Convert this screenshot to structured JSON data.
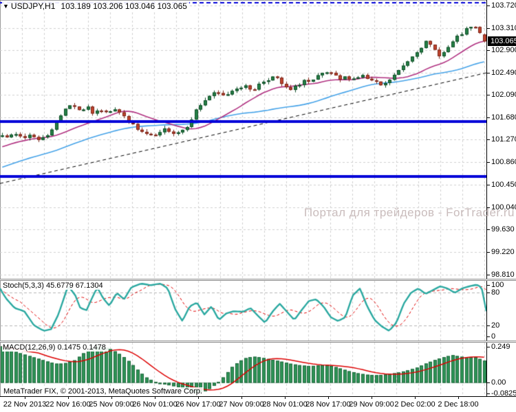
{
  "header": {
    "symbol": "USDJPY,H1",
    "ohlc_text": "103.189 103.206 103.046 103.065",
    "current_price": "103.065"
  },
  "watermark": {
    "text": "Портал для трейдеров - ForTrader.ru",
    "color": "#C9BCBC"
  },
  "footer": {
    "copyright": "MetaTrader FIX, © 2001-2013, MetaQuotes Software Corp."
  },
  "time_axis": {
    "labels": [
      "22 Nov 2013",
      "22 Nov 16:00",
      "25 Nov 09:00",
      "26 Nov 01:00",
      "26 Nov 17:00",
      "27 Nov 09:00",
      "28 Nov 01:00",
      "28 Nov 17:00",
      "29 Nov 09:00",
      "2 Dec 02:00",
      "2 Dec 18:00"
    ],
    "centers": [
      36,
      99,
      162,
      225,
      288,
      351,
      414,
      477,
      540,
      603,
      666
    ]
  },
  "colors": {
    "grid": "#CFCFCF",
    "bull_fill": "#258047",
    "bull_border": "#0E4D26",
    "bear_fill": "#C0442E",
    "bear_border": "#7A2418",
    "ma_fast": "#B03080",
    "ma_slow": "#44A2E8",
    "hline": "#0000D8",
    "trendline": "#000000",
    "stoch_main": "#2AA8A0",
    "stoch_signal": "#E00000",
    "macd_bar": "#2E9457",
    "macd_bar_border": "#1A6438",
    "macd_signal": "#DD0000",
    "level": "#B4B4B4",
    "tag_bg": "#000000",
    "tag_fg": "#FFFFFF"
  },
  "chart_data": [
    {
      "type": "candlestick",
      "title": "USDJPY,H1",
      "current_bar": {
        "open": 103.189,
        "high": 103.206,
        "low": 103.046,
        "close": 103.065
      },
      "ylim": [
        98.73,
        103.82
      ],
      "price_ticks": {
        "labels": [
          "103.720",
          "103.310",
          "102.900",
          "102.490",
          "102.090",
          "101.680",
          "101.270",
          "100.860",
          "100.450",
          "100.040",
          "99.630",
          "99.220",
          "98.810"
        ],
        "values": [
          103.72,
          103.31,
          102.9,
          102.49,
          102.09,
          101.68,
          101.27,
          100.86,
          100.45,
          100.04,
          99.63,
          99.22,
          98.81
        ]
      },
      "candle_count": 108,
      "seed": 7,
      "volatility": 0.05,
      "price_path": [
        [
          0.0,
          101.38
        ],
        [
          0.015,
          101.32
        ],
        [
          0.03,
          101.36
        ],
        [
          0.045,
          101.3
        ],
        [
          0.06,
          101.38
        ],
        [
          0.075,
          101.26
        ],
        [
          0.09,
          101.32
        ],
        [
          0.1,
          101.45
        ],
        [
          0.115,
          101.6
        ],
        [
          0.13,
          101.85
        ],
        [
          0.145,
          101.93
        ],
        [
          0.16,
          101.8
        ],
        [
          0.175,
          101.86
        ],
        [
          0.19,
          101.74
        ],
        [
          0.205,
          101.82
        ],
        [
          0.22,
          101.8
        ],
        [
          0.235,
          101.84
        ],
        [
          0.25,
          101.7
        ],
        [
          0.265,
          101.58
        ],
        [
          0.28,
          101.45
        ],
        [
          0.295,
          101.38
        ],
        [
          0.31,
          101.32
        ],
        [
          0.325,
          101.36
        ],
        [
          0.34,
          101.48
        ],
        [
          0.355,
          101.4
        ],
        [
          0.37,
          101.42
        ],
        [
          0.385,
          101.55
        ],
        [
          0.4,
          101.78
        ],
        [
          0.415,
          101.95
        ],
        [
          0.43,
          102.07
        ],
        [
          0.445,
          102.12
        ],
        [
          0.46,
          102.06
        ],
        [
          0.475,
          102.16
        ],
        [
          0.49,
          102.25
        ],
        [
          0.505,
          102.23
        ],
        [
          0.52,
          102.18
        ],
        [
          0.535,
          102.3
        ],
        [
          0.55,
          102.38
        ],
        [
          0.565,
          102.42
        ],
        [
          0.58,
          102.28
        ],
        [
          0.595,
          102.15
        ],
        [
          0.61,
          102.24
        ],
        [
          0.625,
          102.36
        ],
        [
          0.64,
          102.3
        ],
        [
          0.655,
          102.42
        ],
        [
          0.67,
          102.5
        ],
        [
          0.685,
          102.45
        ],
        [
          0.7,
          102.36
        ],
        [
          0.715,
          102.42
        ],
        [
          0.73,
          102.38
        ],
        [
          0.745,
          102.45
        ],
        [
          0.76,
          102.36
        ],
        [
          0.775,
          102.3
        ],
        [
          0.79,
          102.24
        ],
        [
          0.805,
          102.38
        ],
        [
          0.82,
          102.5
        ],
        [
          0.835,
          102.65
        ],
        [
          0.85,
          102.8
        ],
        [
          0.865,
          102.95
        ],
        [
          0.88,
          103.05
        ],
        [
          0.895,
          102.92
        ],
        [
          0.91,
          102.8
        ],
        [
          0.925,
          102.95
        ],
        [
          0.94,
          103.1
        ],
        [
          0.955,
          103.22
        ],
        [
          0.97,
          103.32
        ],
        [
          0.985,
          103.3
        ],
        [
          1.0,
          103.065
        ]
      ],
      "ma_fast_window": 16,
      "ma_slow_window": 40,
      "ma_prehistory_start": 99.5,
      "trendline": {
        "start_price": 100.47,
        "end_price": 102.49,
        "style": "dashed"
      },
      "hlines": [
        {
          "price": 101.6,
          "style": "solid",
          "width": 4
        },
        {
          "price": 100.6,
          "style": "solid",
          "width": 4
        },
        {
          "price": 103.765,
          "style": "dashed",
          "width": 2
        }
      ]
    },
    {
      "type": "line",
      "name": "Stochastic Oscillator",
      "label": "Stoch(5,3,3)",
      "current_values": "45.6779 67.1304",
      "main_value": 45.6779,
      "signal_value": 67.1304,
      "ylim": [
        0,
        100
      ],
      "draw_ylim": [
        -8,
        102
      ],
      "levels": [
        80,
        20
      ],
      "ticks": {
        "labels": [
          "100",
          "80",
          "20",
          "0"
        ],
        "values": [
          100,
          80,
          20,
          0
        ]
      },
      "signal_lag": 10,
      "points": [
        [
          0,
          88
        ],
        [
          0.012,
          70
        ],
        [
          0.03,
          52
        ],
        [
          0.05,
          46
        ],
        [
          0.07,
          20
        ],
        [
          0.09,
          10
        ],
        [
          0.105,
          13
        ],
        [
          0.12,
          40
        ],
        [
          0.14,
          93
        ],
        [
          0.155,
          75
        ],
        [
          0.165,
          52
        ],
        [
          0.178,
          48
        ],
        [
          0.19,
          72
        ],
        [
          0.2,
          90
        ],
        [
          0.212,
          70
        ],
        [
          0.225,
          56
        ],
        [
          0.24,
          80
        ],
        [
          0.255,
          68
        ],
        [
          0.27,
          90
        ],
        [
          0.29,
          97
        ],
        [
          0.31,
          94
        ],
        [
          0.33,
          97
        ],
        [
          0.345,
          88
        ],
        [
          0.36,
          50
        ],
        [
          0.375,
          28
        ],
        [
          0.39,
          55
        ],
        [
          0.405,
          62
        ],
        [
          0.42,
          40
        ],
        [
          0.435,
          55
        ],
        [
          0.45,
          30
        ],
        [
          0.465,
          42
        ],
        [
          0.48,
          46
        ],
        [
          0.5,
          45
        ],
        [
          0.515,
          52
        ],
        [
          0.53,
          38
        ],
        [
          0.545,
          25
        ],
        [
          0.56,
          45
        ],
        [
          0.575,
          60
        ],
        [
          0.59,
          45
        ],
        [
          0.605,
          30
        ],
        [
          0.62,
          48
        ],
        [
          0.635,
          65
        ],
        [
          0.65,
          68
        ],
        [
          0.665,
          55
        ],
        [
          0.68,
          35
        ],
        [
          0.695,
          28
        ],
        [
          0.71,
          35
        ],
        [
          0.725,
          75
        ],
        [
          0.74,
          88
        ],
        [
          0.755,
          55
        ],
        [
          0.77,
          30
        ],
        [
          0.785,
          18
        ],
        [
          0.8,
          10
        ],
        [
          0.815,
          25
        ],
        [
          0.83,
          60
        ],
        [
          0.845,
          80
        ],
        [
          0.86,
          88
        ],
        [
          0.875,
          78
        ],
        [
          0.89,
          85
        ],
        [
          0.905,
          92
        ],
        [
          0.92,
          88
        ],
        [
          0.935,
          80
        ],
        [
          0.95,
          88
        ],
        [
          0.965,
          92
        ],
        [
          0.98,
          95
        ],
        [
          0.99,
          90
        ],
        [
          1,
          46
        ]
      ]
    },
    {
      "type": "histogram",
      "name": "MACD",
      "label": "MACD(12,26,9)",
      "current_values": "0.1475 0.1478",
      "macd_value": 0.1475,
      "signal_value": 0.1478,
      "ylim": [
        -0.095,
        0.27
      ],
      "signal_window": 9,
      "ticks": {
        "labels": [
          "0.249",
          "0.00",
          "-0.0825"
        ],
        "values": [
          0.249,
          0,
          -0.0825
        ]
      },
      "points": [
        [
          0,
          0.245
        ],
        [
          0.02,
          0.215
        ],
        [
          0.04,
          0.195
        ],
        [
          0.06,
          0.175
        ],
        [
          0.08,
          0.155
        ],
        [
          0.1,
          0.135
        ],
        [
          0.115,
          0.125
        ],
        [
          0.13,
          0.13
        ],
        [
          0.15,
          0.15
        ],
        [
          0.165,
          0.19
        ],
        [
          0.18,
          0.225
        ],
        [
          0.195,
          0.245
        ],
        [
          0.21,
          0.24
        ],
        [
          0.225,
          0.225
        ],
        [
          0.24,
          0.2
        ],
        [
          0.255,
          0.165
        ],
        [
          0.27,
          0.12
        ],
        [
          0.285,
          0.07
        ],
        [
          0.3,
          0.03
        ],
        [
          0.315,
          0.005
        ],
        [
          0.33,
          -0.01
        ],
        [
          0.345,
          -0.02
        ],
        [
          0.36,
          -0.03
        ],
        [
          0.375,
          -0.045
        ],
        [
          0.39,
          -0.06
        ],
        [
          0.4,
          -0.075
        ],
        [
          0.415,
          -0.07
        ],
        [
          0.43,
          -0.045
        ],
        [
          0.445,
          -0.01
        ],
        [
          0.46,
          0.04
        ],
        [
          0.475,
          0.1
        ],
        [
          0.49,
          0.14
        ],
        [
          0.505,
          0.165
        ],
        [
          0.52,
          0.175
        ],
        [
          0.535,
          0.17
        ],
        [
          0.55,
          0.16
        ],
        [
          0.565,
          0.15
        ],
        [
          0.58,
          0.14
        ],
        [
          0.6,
          0.125
        ],
        [
          0.62,
          0.115
        ],
        [
          0.64,
          0.11
        ],
        [
          0.655,
          0.115
        ],
        [
          0.67,
          0.12
        ],
        [
          0.685,
          0.11
        ],
        [
          0.7,
          0.095
        ],
        [
          0.72,
          0.075
        ],
        [
          0.74,
          0.06
        ],
        [
          0.76,
          0.05
        ],
        [
          0.78,
          0.048
        ],
        [
          0.8,
          0.055
        ],
        [
          0.82,
          0.065
        ],
        [
          0.84,
          0.08
        ],
        [
          0.86,
          0.1
        ],
        [
          0.88,
          0.13
        ],
        [
          0.9,
          0.155
        ],
        [
          0.92,
          0.175
        ],
        [
          0.935,
          0.185
        ],
        [
          0.95,
          0.175
        ],
        [
          0.965,
          0.17
        ],
        [
          0.98,
          0.172
        ],
        [
          1,
          0.1475
        ]
      ]
    }
  ]
}
